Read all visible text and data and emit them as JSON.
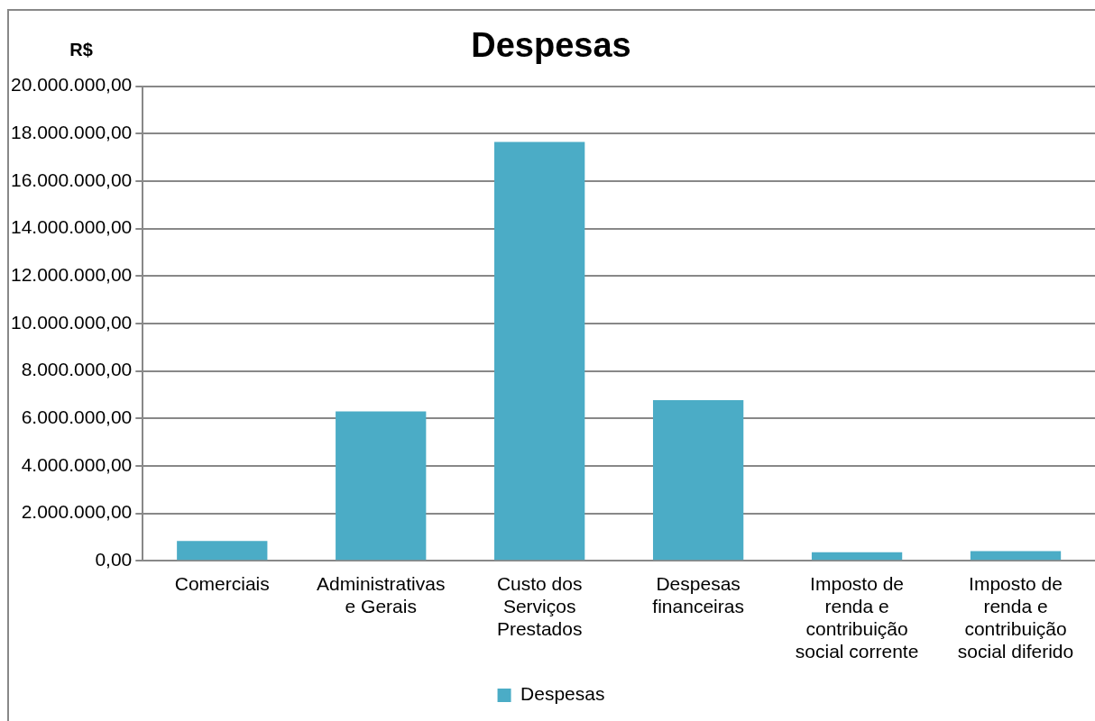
{
  "chart_data": {
    "type": "bar",
    "title": "Despesas",
    "ylabel": "R$",
    "categories": [
      "Comerciais",
      "Administrativas e Gerais",
      "Custo dos Serviços Prestados",
      "Despesas financeiras",
      "Imposto de renda e contribuição social corrente",
      "Imposto de renda e contribuição social diferido"
    ],
    "series": [
      {
        "name": "Despesas",
        "color": "#4bacc6",
        "values": [
          830000,
          6290000,
          17650000,
          6770000,
          360000,
          410000
        ]
      }
    ],
    "ylim": [
      0,
      20000000
    ],
    "yticks": [
      {
        "value": 0,
        "label": "0,00"
      },
      {
        "value": 2000000,
        "label": "2.000.000,00"
      },
      {
        "value": 4000000,
        "label": "4.000.000,00"
      },
      {
        "value": 6000000,
        "label": "6.000.000,00"
      },
      {
        "value": 8000000,
        "label": "8.000.000,00"
      },
      {
        "value": 10000000,
        "label": "10.000.000,00"
      },
      {
        "value": 12000000,
        "label": "12.000.000,00"
      },
      {
        "value": 14000000,
        "label": "14.000.000,00"
      },
      {
        "value": 16000000,
        "label": "16.000.000,00"
      },
      {
        "value": 18000000,
        "label": "18.000.000,00"
      },
      {
        "value": 20000000,
        "label": "20.000.000,00"
      }
    ],
    "grid": "y",
    "legend": "bottom"
  }
}
